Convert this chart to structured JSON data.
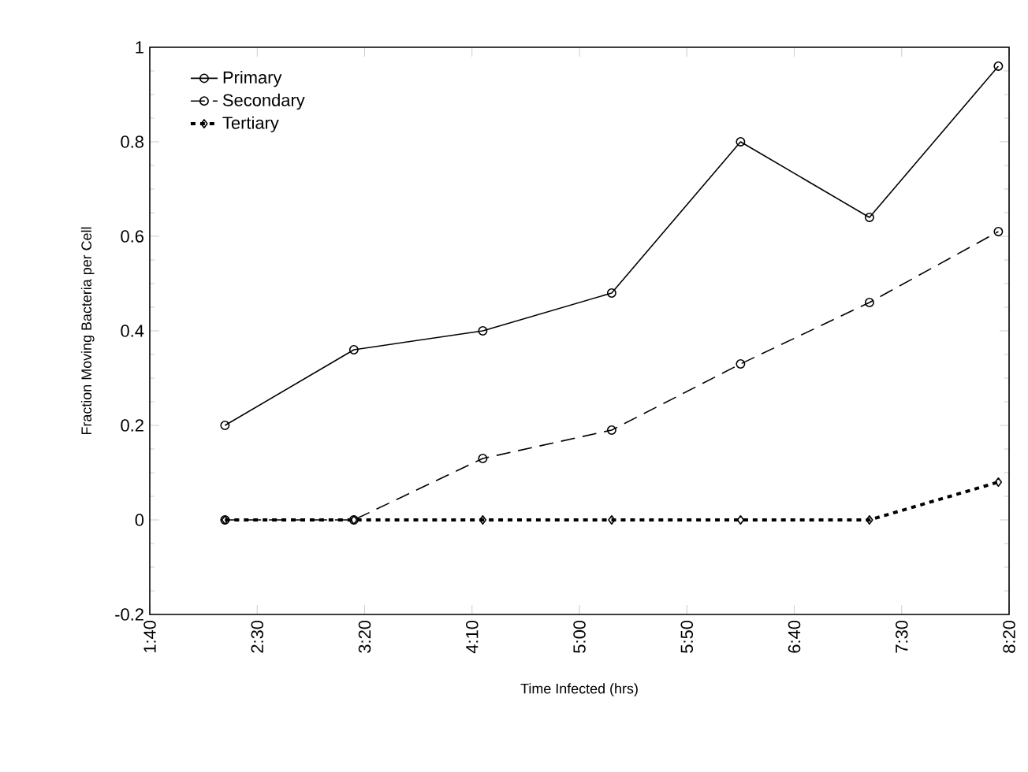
{
  "chart_data": {
    "type": "line",
    "xlabel": "Time Infected (hrs)",
    "ylabel": "Fraction Moving Bacteria per Cell",
    "x": [
      2.25,
      3.25,
      4.25,
      5.25,
      6.25,
      7.25,
      8.25
    ],
    "series": [
      {
        "name": "Primary",
        "color": "#000000",
        "marker": "circle",
        "line_style": "solid",
        "values": [
          0.2,
          0.36,
          0.4,
          0.48,
          0.8,
          0.64,
          0.96
        ]
      },
      {
        "name": "Secondary",
        "color": "#000000",
        "marker": "circle",
        "line_style": "dashed",
        "values": [
          0,
          0,
          0.13,
          0.19,
          0.33,
          0.46,
          0.61
        ]
      },
      {
        "name": "Tertiary",
        "color": "#000000",
        "marker": "diamond",
        "line_style": "dotted",
        "values": [
          0,
          0,
          0,
          0,
          0,
          0,
          0.08
        ]
      }
    ],
    "xlim": [
      1.6667,
      8.3333
    ],
    "xticks": [
      {
        "value": 1.6667,
        "label": "1:40"
      },
      {
        "value": 2.5,
        "label": "2:30"
      },
      {
        "value": 3.3333,
        "label": "3:20"
      },
      {
        "value": 4.1667,
        "label": "4:10"
      },
      {
        "value": 5,
        "label": "5:00"
      },
      {
        "value": 5.8333,
        "label": "5:50"
      },
      {
        "value": 6.6667,
        "label": "6:40"
      },
      {
        "value": 7.5,
        "label": "7:30"
      },
      {
        "value": 8.3333,
        "label": "8:20"
      }
    ],
    "ylim": [
      -0.2,
      1
    ],
    "yticks": [
      -0.2,
      0,
      0.2,
      0.4,
      0.6,
      0.8,
      1
    ],
    "legend": "top left",
    "grid": false
  }
}
